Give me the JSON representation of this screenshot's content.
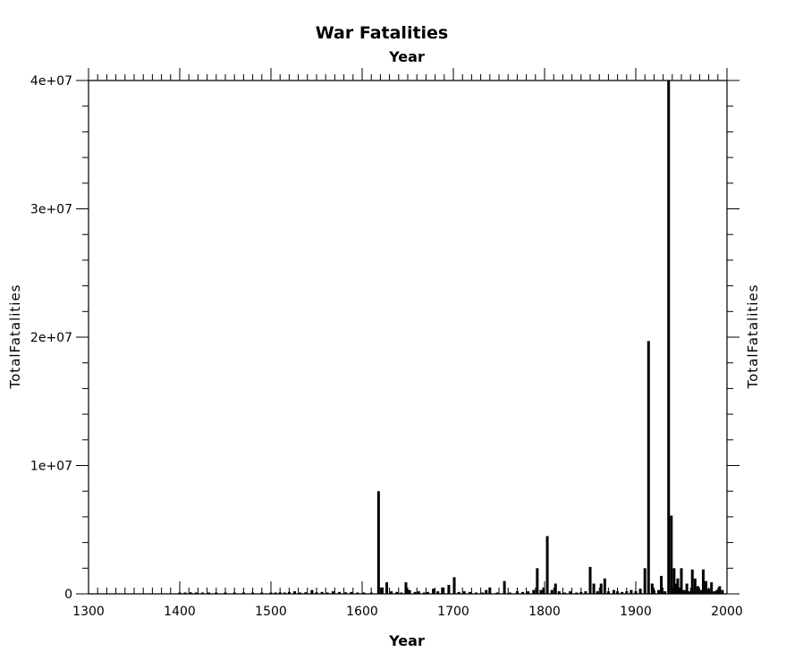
{
  "chart_data": {
    "type": "bar",
    "title": "War Fatalities",
    "xlabel_bottom": "Year",
    "xlabel_top": "Year",
    "ylabel_left": "TotalFatalities",
    "ylabel_right": "TotalFatalities",
    "xlim": [
      1300,
      2000
    ],
    "ylim": [
      0,
      40000000
    ],
    "x_ticks": [
      1300,
      1400,
      1500,
      1600,
      1700,
      1800,
      1900,
      2000
    ],
    "x_tick_labels": [
      "1300",
      "1400",
      "1500",
      "1600",
      "1700",
      "1800",
      "1900",
      "2000"
    ],
    "y_ticks": [
      0,
      10000000,
      20000000,
      30000000,
      40000000
    ],
    "y_tick_labels": [
      "0",
      "1e+07",
      "2e+07",
      "3e+07",
      "4e+07"
    ],
    "grid": false,
    "bar_color": "#000000",
    "x": [
      1400,
      1406,
      1412,
      1418,
      1425,
      1432,
      1440,
      1450,
      1460,
      1470,
      1480,
      1490,
      1500,
      1505,
      1510,
      1515,
      1520,
      1526,
      1532,
      1538,
      1545,
      1550,
      1556,
      1562,
      1568,
      1575,
      1582,
      1588,
      1595,
      1602,
      1610,
      1618,
      1622,
      1627,
      1632,
      1638,
      1643,
      1648,
      1652,
      1658,
      1662,
      1668,
      1672,
      1678,
      1683,
      1688,
      1695,
      1701,
      1706,
      1712,
      1718,
      1725,
      1732,
      1736,
      1740,
      1748,
      1756,
      1762,
      1770,
      1776,
      1782,
      1788,
      1792,
      1796,
      1799,
      1803,
      1808,
      1812,
      1816,
      1822,
      1828,
      1835,
      1840,
      1845,
      1850,
      1854,
      1858,
      1862,
      1866,
      1870,
      1876,
      1880,
      1885,
      1890,
      1895,
      1900,
      1905,
      1910,
      1914,
      1918,
      1920,
      1925,
      1928,
      1932,
      1936,
      1939,
      1942,
      1944,
      1946,
      1948,
      1950,
      1953,
      1956,
      1959,
      1962,
      1965,
      1968,
      1971,
      1974,
      1977,
      1980,
      1983,
      1986,
      1989,
      1992,
      1995
    ],
    "values": [
      100000,
      80000,
      120000,
      60000,
      90000,
      70000,
      80000,
      50000,
      60000,
      70000,
      60000,
      80000,
      90000,
      60000,
      120000,
      100000,
      150000,
      200000,
      100000,
      120000,
      300000,
      120000,
      150000,
      100000,
      200000,
      150000,
      120000,
      150000,
      100000,
      80000,
      100000,
      8000000,
      500000,
      900000,
      200000,
      150000,
      100000,
      900000,
      300000,
      150000,
      200000,
      100000,
      150000,
      400000,
      200000,
      500000,
      700000,
      1300000,
      150000,
      200000,
      150000,
      100000,
      100000,
      300000,
      500000,
      100000,
      1000000,
      100000,
      200000,
      150000,
      200000,
      300000,
      2000000,
      300000,
      500000,
      4500000,
      300000,
      800000,
      200000,
      100000,
      200000,
      100000,
      150000,
      200000,
      2100000,
      800000,
      200000,
      800000,
      1200000,
      200000,
      300000,
      200000,
      150000,
      200000,
      300000,
      200000,
      400000,
      2000000,
      19700000,
      800000,
      300000,
      300000,
      1400000,
      200000,
      40000000,
      6100000,
      2000000,
      800000,
      1200000,
      500000,
      2000000,
      300000,
      800000,
      200000,
      1900000,
      1200000,
      600000,
      300000,
      1900000,
      1000000,
      400000,
      900000,
      200000,
      300000,
      600000,
      300000
    ]
  }
}
